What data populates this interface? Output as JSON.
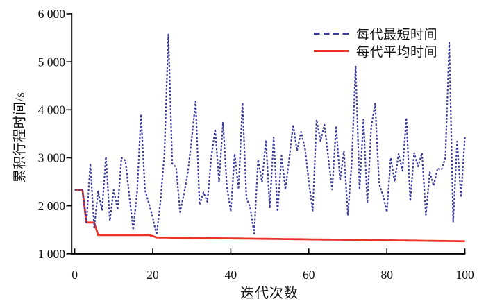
{
  "chart_data": {
    "type": "line",
    "title": "",
    "xlabel": "迭代次数",
    "ylabel": "累积行程时间/s",
    "xlim": [
      0,
      100
    ],
    "ylim": [
      1000,
      6000
    ],
    "grid": false,
    "legend_position": "upper right",
    "background_color": "#ffffff",
    "axis_color": "#000000",
    "xticks": {
      "values": [
        0,
        20,
        40,
        60,
        80,
        100
      ],
      "labels": [
        "0",
        "20",
        "40",
        "60",
        "80",
        "100"
      ]
    },
    "yticks": {
      "values": [
        1000,
        2000,
        3000,
        4000,
        5000,
        6000
      ],
      "labels": [
        "1 000",
        "2 000",
        "3 000",
        "4 000",
        "5 000",
        "6 000"
      ]
    },
    "x": [
      0,
      1,
      2,
      3,
      4,
      5,
      6,
      7,
      8,
      9,
      10,
      11,
      12,
      13,
      14,
      15,
      16,
      17,
      18,
      19,
      20,
      21,
      22,
      23,
      24,
      25,
      26,
      27,
      28,
      29,
      30,
      31,
      32,
      33,
      34,
      35,
      36,
      37,
      38,
      39,
      40,
      41,
      42,
      43,
      44,
      45,
      46,
      47,
      48,
      49,
      50,
      51,
      52,
      53,
      54,
      55,
      56,
      57,
      58,
      59,
      60,
      61,
      62,
      63,
      64,
      65,
      66,
      67,
      68,
      69,
      70,
      71,
      72,
      73,
      74,
      75,
      76,
      77,
      78,
      79,
      80,
      81,
      82,
      83,
      84,
      85,
      86,
      87,
      88,
      89,
      90,
      91,
      92,
      93,
      94,
      95,
      96,
      97,
      98,
      99,
      100
    ],
    "series": [
      {
        "id": "min-time-series",
        "name": "每代最短时间",
        "color": "#3b3b97",
        "line_style": "dashed",
        "values": [
          2330,
          2330,
          2330,
          1650,
          2880,
          1545,
          2300,
          1900,
          3020,
          1690,
          2330,
          1920,
          3000,
          2940,
          2200,
          1500,
          2290,
          3905,
          2330,
          2050,
          1750,
          1390,
          2100,
          3100,
          5570,
          2880,
          2800,
          1870,
          2250,
          2700,
          3400,
          4175,
          2020,
          2280,
          2080,
          3000,
          3600,
          2500,
          3745,
          2400,
          1880,
          3080,
          2350,
          4150,
          2170,
          1950,
          1420,
          2960,
          2500,
          3370,
          1950,
          3425,
          1880,
          3040,
          2340,
          3000,
          3690,
          3150,
          3540,
          3210,
          2500,
          1900,
          3790,
          3350,
          3690,
          3000,
          2340,
          3660,
          2530,
          3140,
          1800,
          2900,
          4920,
          2340,
          3800,
          2050,
          3640,
          4130,
          2460,
          2220,
          1870,
          3000,
          2500,
          3080,
          2730,
          3830,
          2100,
          3100,
          2820,
          3100,
          1810,
          2700,
          2420,
          2780,
          2750,
          3000,
          5400,
          1670,
          3340,
          2175,
          3440
        ]
      },
      {
        "id": "avg-time-series",
        "name": "每代平均时间",
        "color": "#ea3428",
        "line_style": "solid",
        "values": [
          2330,
          2330,
          2330,
          1650,
          1650,
          1650,
          1390,
          1390,
          1390,
          1390,
          1390,
          1390,
          1390,
          1390,
          1390,
          1390,
          1390,
          1390,
          1390,
          1390,
          1370,
          1340,
          1339,
          1338,
          1337,
          1336,
          1335,
          1334,
          1333,
          1332,
          1331,
          1330,
          1329,
          1328,
          1327,
          1326,
          1325,
          1324,
          1323,
          1322,
          1321,
          1320,
          1319,
          1318,
          1317,
          1316,
          1315,
          1314,
          1313,
          1312,
          1311,
          1310,
          1309,
          1308,
          1307,
          1306,
          1305,
          1304,
          1303,
          1302,
          1301,
          1300,
          1299,
          1298,
          1297,
          1296,
          1295,
          1294,
          1293,
          1292,
          1291,
          1290,
          1289,
          1288,
          1287,
          1286,
          1285,
          1284,
          1283,
          1282,
          1281,
          1280,
          1279,
          1278,
          1277,
          1276,
          1275,
          1274,
          1273,
          1272,
          1271,
          1270,
          1269,
          1268,
          1267,
          1266,
          1265,
          1264,
          1263,
          1262,
          1261
        ]
      }
    ]
  }
}
